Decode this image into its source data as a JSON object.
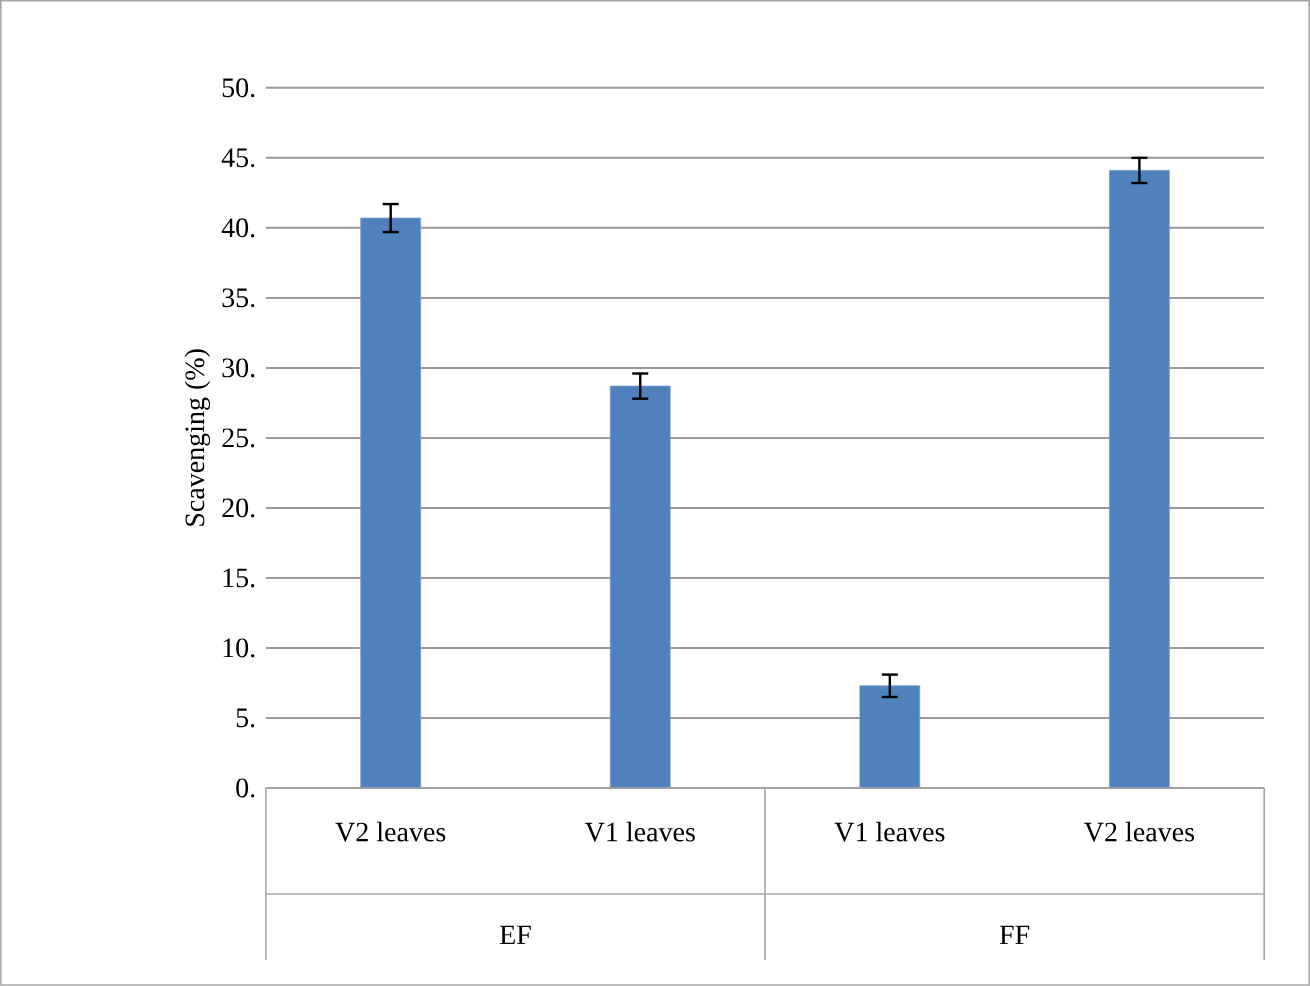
{
  "chart_data": {
    "type": "bar",
    "ylabel": "Scavenging (%)",
    "categories": [
      "V2 leaves",
      "V1 leaves",
      "V1 leaves",
      "V2 leaves"
    ],
    "values": [
      40.7,
      28.7,
      7.3,
      44.1
    ],
    "errors": [
      1.0,
      0.9,
      0.8,
      0.9
    ],
    "color": "#4f81bd",
    "annotations": [
      "EF",
      "FF"
    ],
    "ylim": [
      0,
      50
    ],
    "yticks": [
      {
        "value": 0,
        "label": "0."
      },
      {
        "value": 5,
        "label": "5."
      },
      {
        "value": 10,
        "label": "10."
      },
      {
        "value": 15,
        "label": "15."
      },
      {
        "value": 20,
        "label": "20."
      },
      {
        "value": 25,
        "label": "25."
      },
      {
        "value": 30,
        "label": "30."
      },
      {
        "value": 35,
        "label": "35."
      },
      {
        "value": 40,
        "label": "40."
      },
      {
        "value": 45,
        "label": "45."
      },
      {
        "value": 50,
        "label": "50."
      }
    ],
    "grid": "y"
  }
}
